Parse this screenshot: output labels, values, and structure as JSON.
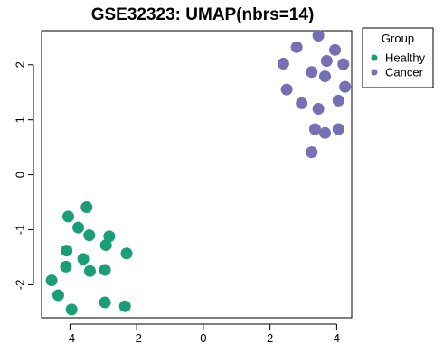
{
  "chart_data": {
    "type": "scatter",
    "title": "GSE32323: UMAP(nbrs=14)",
    "xlabel": "",
    "ylabel": "",
    "xlim": [
      -4.85,
      4.45
    ],
    "ylim": [
      -2.6,
      2.62
    ],
    "x_ticks": [
      -4,
      -2,
      0,
      2,
      4
    ],
    "x_tick_labels": [
      "-4",
      "-2",
      "0",
      "2",
      "4"
    ],
    "y_ticks": [
      -2,
      -1,
      0,
      1,
      2
    ],
    "y_tick_labels": [
      "-2",
      "-1",
      "0",
      "1",
      "2"
    ],
    "grid": false,
    "legend": {
      "title": "Group",
      "position": "outside-top-right",
      "entries": [
        {
          "label": "Healthy",
          "color": "#1b9e77"
        },
        {
          "label": "Cancer",
          "color": "#7570b3"
        }
      ]
    },
    "series": [
      {
        "name": "Healthy",
        "color": "#1b9e77",
        "points": [
          [
            -3.5,
            -0.59
          ],
          [
            -4.05,
            -0.76
          ],
          [
            -3.75,
            -0.96
          ],
          [
            -3.42,
            -1.1
          ],
          [
            -2.82,
            -1.12
          ],
          [
            -2.92,
            -1.28
          ],
          [
            -4.1,
            -1.38
          ],
          [
            -2.3,
            -1.43
          ],
          [
            -3.6,
            -1.53
          ],
          [
            -4.12,
            -1.67
          ],
          [
            -3.4,
            -1.75
          ],
          [
            -2.95,
            -1.73
          ],
          [
            -4.55,
            -1.92
          ],
          [
            -4.35,
            -2.19
          ],
          [
            -2.95,
            -2.32
          ],
          [
            -2.35,
            -2.39
          ],
          [
            -3.95,
            -2.45
          ]
        ]
      },
      {
        "name": "Cancer",
        "color": "#7570b3",
        "points": [
          [
            3.45,
            2.53
          ],
          [
            2.8,
            2.32
          ],
          [
            3.95,
            2.27
          ],
          [
            3.7,
            2.07
          ],
          [
            2.4,
            2.02
          ],
          [
            4.2,
            2.01
          ],
          [
            3.25,
            1.87
          ],
          [
            3.65,
            1.79
          ],
          [
            4.25,
            1.6
          ],
          [
            2.5,
            1.55
          ],
          [
            4.05,
            1.35
          ],
          [
            2.95,
            1.3
          ],
          [
            3.45,
            1.2
          ],
          [
            3.35,
            0.83
          ],
          [
            3.65,
            0.76
          ],
          [
            4.05,
            0.83
          ],
          [
            3.25,
            0.41
          ]
        ]
      }
    ]
  }
}
